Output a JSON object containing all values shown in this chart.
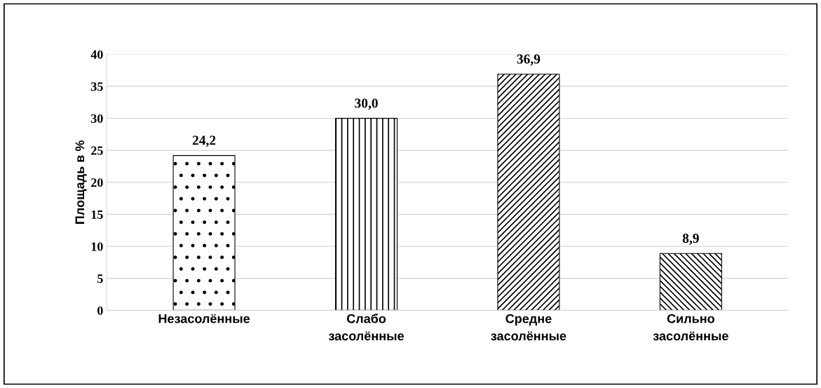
{
  "chart_data": {
    "type": "bar",
    "ylabel": "Площадь в %",
    "categories": [
      "Незасолённые",
      "Слабо\nзасолённые",
      "Средне\nзасолённые",
      "Сильно\nзасолённые"
    ],
    "values": [
      24.2,
      30.0,
      36.9,
      8.9
    ],
    "value_labels": [
      "24,2",
      "30,0",
      "36,9",
      "8,9"
    ],
    "colors": [
      "#000000",
      "#000000",
      "#000000",
      "#000000"
    ],
    "ylim": [
      0,
      40
    ],
    "yticks": [
      0,
      5,
      10,
      15,
      20,
      25,
      30,
      35,
      40
    ],
    "grid": "y"
  }
}
